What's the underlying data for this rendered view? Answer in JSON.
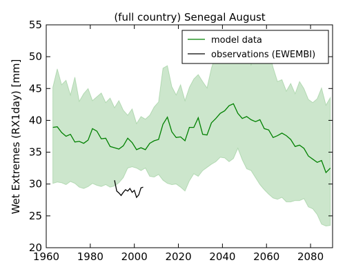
{
  "chart_data": {
    "type": "line",
    "title": "(full country) Senegal August",
    "xlabel": "",
    "ylabel": "Wet Extremes (RX1day) [mm]",
    "xlim": [
      1960,
      2090
    ],
    "ylim": [
      20,
      55
    ],
    "xticks": [
      1960,
      1980,
      2000,
      2020,
      2040,
      2060,
      2080
    ],
    "yticks": [
      20,
      25,
      30,
      35,
      40,
      45,
      50,
      55
    ],
    "grid": false,
    "legend": "top-right",
    "series": [
      {
        "name": "model data",
        "color": "#008000",
        "x": [
          1963,
          1965,
          1967,
          1969,
          1971,
          1973,
          1975,
          1977,
          1979,
          1981,
          1983,
          1985,
          1987,
          1989,
          1991,
          1993,
          1995,
          1997,
          1999,
          2001,
          2003,
          2005,
          2007,
          2009,
          2011,
          2013,
          2015,
          2017,
          2019,
          2021,
          2023,
          2025,
          2027,
          2029,
          2031,
          2033,
          2035,
          2037,
          2039,
          2041,
          2043,
          2045,
          2047,
          2049,
          2051,
          2053,
          2055,
          2057,
          2059,
          2061,
          2063,
          2065,
          2067,
          2069,
          2071,
          2073,
          2075,
          2077,
          2079,
          2081,
          2083,
          2085,
          2087,
          2089
        ],
        "y": [
          38.9,
          39.0,
          38.1,
          37.5,
          37.8,
          36.6,
          36.7,
          36.4,
          36.9,
          38.7,
          38.3,
          37.1,
          37.2,
          35.9,
          35.7,
          35.5,
          36.0,
          37.2,
          36.5,
          35.4,
          35.7,
          35.4,
          36.4,
          36.8,
          37.0,
          39.4,
          40.5,
          38.2,
          37.3,
          37.4,
          36.8,
          38.9,
          38.9,
          40.4,
          37.8,
          37.7,
          39.6,
          40.3,
          41.1,
          41.5,
          42.3,
          42.6,
          41.1,
          40.3,
          40.6,
          40.1,
          39.8,
          40.1,
          38.7,
          38.5,
          37.3,
          37.6,
          38.0,
          37.6,
          37.0,
          35.9,
          36.1,
          35.6,
          34.4,
          33.9,
          33.4,
          33.7,
          31.8,
          32.5
        ]
      },
      {
        "name": "observations (EWEMBI)",
        "color": "#000000",
        "x": [
          1991,
          1992,
          1993,
          1994,
          1995,
          1996,
          1997,
          1998,
          1999,
          2000,
          2001,
          2002,
          2003,
          2004
        ],
        "y": [
          30.6,
          28.9,
          28.6,
          28.2,
          28.7,
          29.1,
          28.9,
          29.3,
          28.7,
          29.0,
          27.9,
          28.3,
          29.4,
          29.5
        ]
      }
    ],
    "band": {
      "color": "#008000",
      "x": [
        1963,
        1965,
        1967,
        1969,
        1971,
        1973,
        1975,
        1977,
        1979,
        1981,
        1983,
        1985,
        1987,
        1989,
        1991,
        1993,
        1995,
        1997,
        1999,
        2001,
        2003,
        2005,
        2007,
        2009,
        2011,
        2013,
        2015,
        2017,
        2019,
        2021,
        2023,
        2025,
        2027,
        2029,
        2031,
        2033,
        2035,
        2037,
        2039,
        2041,
        2043,
        2045,
        2047,
        2049,
        2051,
        2053,
        2055,
        2057,
        2059,
        2061,
        2063,
        2065,
        2067,
        2069,
        2071,
        2073,
        2075,
        2077,
        2079,
        2081,
        2083,
        2085,
        2087,
        2089
      ],
      "upper": [
        45.2,
        48.1,
        45.6,
        46.3,
        44.0,
        46.8,
        43.0,
        44.2,
        45.0,
        43.1,
        43.7,
        44.3,
        42.8,
        43.5,
        42.0,
        43.1,
        41.6,
        40.8,
        41.8,
        39.5,
        40.6,
        40.2,
        40.8,
        42.1,
        42.9,
        48.2,
        48.6,
        45.3,
        44.0,
        45.6,
        43.1,
        45.2,
        46.5,
        47.2,
        46.1,
        45.1,
        48.2,
        50.4,
        51.9,
        49.1,
        52.1,
        50.6,
        50.1,
        52.3,
        50.8,
        48.7,
        50.3,
        52.2,
        50.1,
        51.1,
        48.3,
        46.1,
        46.4,
        44.6,
        45.8,
        44.2,
        46.1,
        45.0,
        43.3,
        42.8,
        43.4,
        45.1,
        42.4,
        43.6
      ],
      "lower": [
        30.1,
        30.3,
        30.2,
        29.9,
        30.4,
        30.1,
        29.5,
        29.3,
        29.6,
        30.1,
        29.8,
        29.6,
        29.9,
        29.5,
        29.7,
        30.2,
        31.0,
        32.5,
        32.7,
        32.5,
        32.1,
        32.5,
        31.2,
        31.1,
        31.5,
        30.6,
        30.1,
        29.9,
        30.0,
        29.5,
        28.9,
        30.5,
        31.6,
        31.2,
        32.1,
        32.6,
        33.1,
        33.5,
        34.2,
        34.1,
        33.5,
        34.0,
        35.6,
        33.8,
        32.4,
        32.1,
        31.0,
        29.9,
        29.1,
        28.4,
        27.8,
        27.6,
        27.9,
        27.2,
        27.2,
        27.4,
        27.4,
        27.7,
        26.4,
        26.1,
        25.2,
        23.7,
        23.4,
        23.5
      ]
    }
  }
}
